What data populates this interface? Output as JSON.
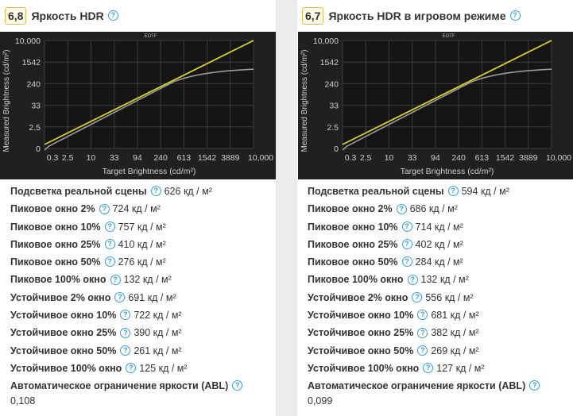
{
  "panels": [
    {
      "score": "6,8",
      "title": "Яркость HDR",
      "chart": {
        "title": "EOTF",
        "xlabel": "Target Brightness (cd/m²)",
        "ylabel": "Measured Brightness (cd/m²)",
        "xticks": [
          "0.3",
          "2.5",
          "10",
          "33",
          "94",
          "240",
          "613",
          "1542",
          "3889",
          "10,000"
        ],
        "yticks": [
          "10,000",
          "1542",
          "240",
          "33",
          "2.5",
          "0"
        ]
      },
      "rows": [
        {
          "label": "Подсветка реальной сцены",
          "value": "626 кд / м²"
        },
        {
          "label": "Пиковое окно 2%",
          "value": "724 кд / м²"
        },
        {
          "label": "Пиковое окно 10%",
          "value": "757 кд / м²"
        },
        {
          "label": "Пиковое окно 25%",
          "value": "410 кд / м²"
        },
        {
          "label": "Пиковое окно 50%",
          "value": "276 кд / м²"
        },
        {
          "label": "Пиковое 100% окно",
          "value": "132 кд / м²"
        },
        {
          "label": "Устойчивое 2% окно",
          "value": "691 кд / м²"
        },
        {
          "label": "Устойчивое окно 10%",
          "value": "722 кд / м²"
        },
        {
          "label": "Устойчивое окно 25%",
          "value": "390 кд / м²"
        },
        {
          "label": "Устойчивое окно 50%",
          "value": "261 кд / м²"
        },
        {
          "label": "Устойчивое 100% окно",
          "value": "125 кд / м²"
        }
      ],
      "abl_label": "Автоматическое ограничение яркости (ABL)",
      "abl_value": "0,108"
    },
    {
      "score": "6,7",
      "title": "Яркость HDR в игровом режиме",
      "chart": {
        "title": "EOTF",
        "xlabel": "Target Brightness (cd/m²)",
        "ylabel": "Measured Brightness (cd/m²)",
        "xticks": [
          "0.3",
          "2.5",
          "10",
          "33",
          "94",
          "240",
          "613",
          "1542",
          "3889",
          "10,000"
        ],
        "yticks": [
          "10,000",
          "1542",
          "240",
          "33",
          "2.5",
          "0"
        ]
      },
      "rows": [
        {
          "label": "Подсветка реальной сцены",
          "value": "594 кд / м²"
        },
        {
          "label": "Пиковое окно 2%",
          "value": "686 кд / м²"
        },
        {
          "label": "Пиковое окно 10%",
          "value": "714 кд / м²"
        },
        {
          "label": "Пиковое окно 25%",
          "value": "402 кд / м²"
        },
        {
          "label": "Пиковое окно 50%",
          "value": "284 кд / м²"
        },
        {
          "label": "Пиковое 100% окно",
          "value": "132 кд / м²"
        },
        {
          "label": "Устойчивое 2% окно",
          "value": "556 кд / м²"
        },
        {
          "label": "Устойчивое окно 10%",
          "value": "681 кд / м²"
        },
        {
          "label": "Устойчивое окно 25%",
          "value": "382 кд / м²"
        },
        {
          "label": "Устойчивое окно 50%",
          "value": "269 кд / м²"
        },
        {
          "label": "Устойчивое 100% окно",
          "value": "127 кд / м²"
        }
      ],
      "abl_label": "Автоматическое ограничение яркости (ABL)",
      "abl_value": "0,099"
    }
  ],
  "help_glyph": "?",
  "colors": {
    "target_line": "#d4d42a",
    "measured_line": "#9a9a9a",
    "chart_bg": "#151515",
    "grid": "#3c3c3c",
    "help_accent": "#3a9fd6"
  }
}
